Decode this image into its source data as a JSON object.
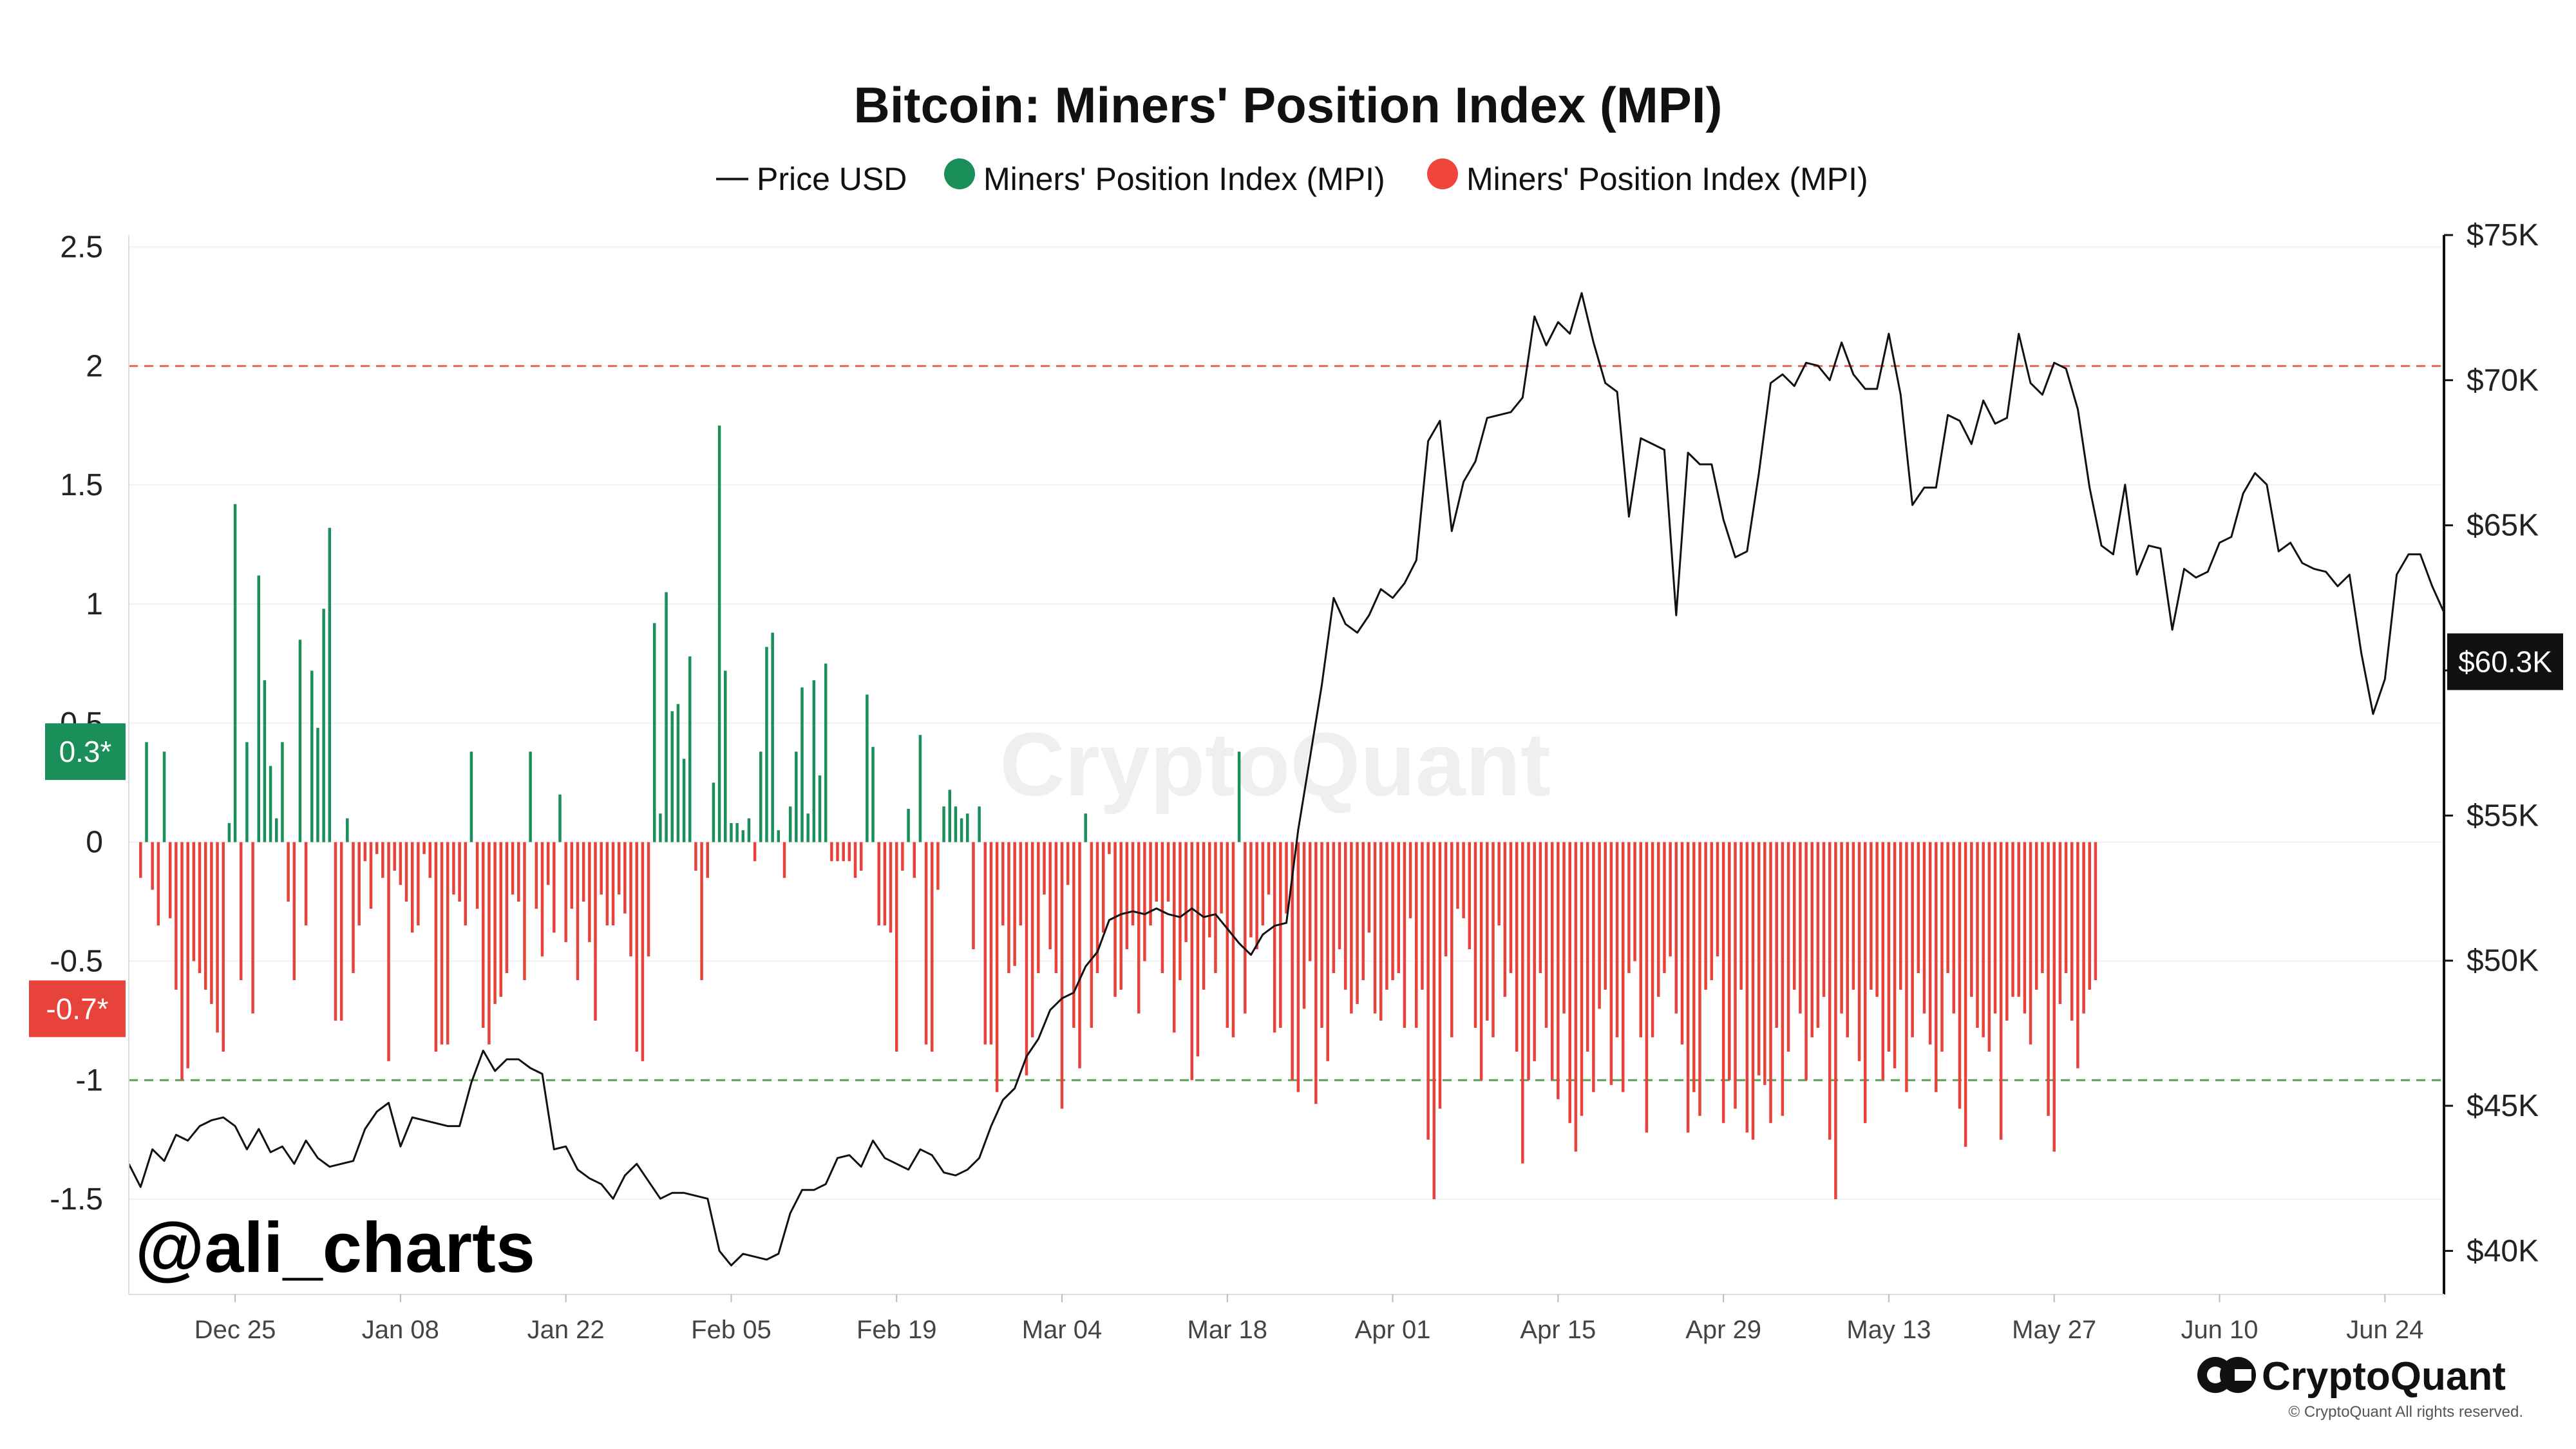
{
  "chart_data": {
    "type": "bar",
    "title": "Bitcoin: Miners' Position Index (MPI)",
    "legend": [
      {
        "label": "Price USD",
        "marker": "line",
        "color": "#222222"
      },
      {
        "label": "Miners' Position Index (MPI)",
        "marker": "dot",
        "color": "#1a8f5a"
      },
      {
        "label": "Miners' Position Index (MPI)",
        "marker": "dot",
        "color": "#f0453a"
      }
    ],
    "colors": {
      "positive": "#1a8f5a",
      "negative": "#e8433a",
      "price": "#111111",
      "upper_line": "#e06a5f",
      "lower_line": "#5aa05a"
    },
    "left_axis": {
      "ticks": [
        "2.5",
        "2",
        "1.5",
        "1",
        "0.5",
        "0",
        "-0.5",
        "-1",
        "-1.5"
      ],
      "ylim": [
        -1.9,
        2.55
      ]
    },
    "right_axis": {
      "ticks": [
        "$75K",
        "$70K",
        "$65K",
        "$60K",
        "$55K",
        "$50K",
        "$45K",
        "$40K"
      ],
      "ylim": [
        38500,
        75000
      ]
    },
    "x_ticks": [
      "Dec 25",
      "Jan 08",
      "Jan 22",
      "Feb 05",
      "Feb 19",
      "Mar 04",
      "Mar 18",
      "Apr 01",
      "Apr 15",
      "Apr 29",
      "May 13",
      "May 27",
      "Jun 10",
      "Jun 24"
    ],
    "x_range_days": [
      -9,
      187
    ],
    "thresholds": [
      {
        "value": 2,
        "color": "#e06a5f"
      },
      {
        "value": -1,
        "color": "#5aa05a"
      }
    ],
    "badges": [
      {
        "label": "0.3*",
        "value": 0.38,
        "axis": "left",
        "color": "#1a8f5a"
      },
      {
        "label": "-0.7*",
        "value": -0.7,
        "axis": "left",
        "color": "#e8433a"
      },
      {
        "label": "$60.3K",
        "value": 60300,
        "axis": "right",
        "color": "#111111"
      }
    ],
    "mpi_series": {
      "name": "Miners' Position Index (MPI)",
      "day_start": -8,
      "values": [
        -0.15,
        0.42,
        -0.2,
        -0.35,
        0.38,
        -0.32,
        -0.62,
        -1.0,
        -0.95,
        -0.5,
        -0.55,
        -0.62,
        -0.68,
        -0.8,
        -0.88,
        0.08,
        1.42,
        -0.58,
        0.42,
        -0.72,
        1.12,
        0.68,
        0.32,
        0.1,
        0.42,
        -0.25,
        -0.58,
        0.85,
        -0.35,
        0.72,
        0.48,
        0.98,
        1.32,
        -0.75,
        -0.75,
        0.1,
        -0.55,
        -0.35,
        -0.08,
        -0.28,
        -0.05,
        -0.15,
        -0.92,
        -0.12,
        -0.18,
        -0.25,
        -0.38,
        -0.35,
        -0.05,
        -0.15,
        -0.88,
        -0.85,
        -0.85,
        -0.22,
        -0.25,
        -0.35,
        0.38,
        -0.28,
        -0.78,
        -0.85,
        -0.68,
        -0.65,
        -0.55,
        -0.22,
        -0.25,
        -0.58,
        0.38,
        -0.28,
        -0.48,
        -0.18,
        -0.38,
        0.2,
        -0.42,
        -0.28,
        -0.58,
        -0.25,
        -0.42,
        -0.75,
        -0.22,
        -0.35,
        -0.35,
        -0.22,
        -0.3,
        -0.48,
        -0.88,
        -0.92,
        -0.48,
        0.92,
        0.12,
        1.05,
        0.55,
        0.58,
        0.35,
        0.78,
        -0.12,
        -0.58,
        -0.15,
        0.25,
        1.75,
        0.72,
        0.08,
        0.08,
        0.05,
        0.1,
        -0.08,
        0.38,
        0.82,
        0.88,
        0.05,
        -0.15,
        0.15,
        0.38,
        0.65,
        0.12,
        0.68,
        0.28,
        0.75,
        -0.08,
        -0.08,
        -0.08,
        -0.08,
        -0.15,
        -0.12,
        0.62,
        0.4,
        -0.35,
        -0.35,
        -0.38,
        -0.88,
        -0.12,
        0.14,
        -0.15,
        0.45,
        -0.85,
        -0.88,
        -0.2,
        0.15,
        0.22,
        0.15,
        0.1,
        0.12,
        -0.45,
        0.15,
        -0.85,
        -0.85,
        -1.05,
        -0.35,
        -0.55,
        -0.52,
        -0.35,
        -0.98,
        -0.82,
        -0.55,
        -0.22,
        -0.45,
        -0.55,
        -1.12,
        -0.18,
        -0.78,
        -0.95,
        0.12,
        -0.78,
        -0.55,
        -0.38,
        -0.05,
        -0.65,
        -0.62,
        -0.45,
        -0.35,
        -0.72,
        -0.5,
        -0.35,
        -0.25,
        -0.55,
        -0.25,
        -0.8,
        -0.58,
        -0.42,
        -1.0,
        -0.9,
        -0.62,
        -0.4,
        -0.55,
        -0.3,
        -0.78,
        -0.82,
        0.38,
        -0.72,
        -0.4,
        -0.45,
        -0.35,
        -0.22,
        -0.8,
        -0.78,
        -0.3,
        -1.0,
        -1.05,
        -0.7,
        -0.5,
        -1.1,
        -0.78,
        -0.92,
        -0.55,
        -0.45,
        -0.62,
        -0.72,
        -0.68,
        -0.58,
        -0.38,
        -0.72,
        -0.75,
        -0.62,
        -0.58,
        -0.55,
        -0.78,
        -0.32,
        -0.78,
        -0.62,
        -1.25,
        -1.5,
        -1.12,
        -0.48,
        -0.82,
        -0.28,
        -0.32,
        -0.45,
        -0.78,
        -1.0,
        -0.75,
        -0.82,
        -0.35,
        -0.65,
        -0.55,
        -0.88,
        -1.35,
        -1.0,
        -0.92,
        -0.55,
        -0.78,
        -1.0,
        -1.08,
        -0.72,
        -1.18,
        -1.3,
        -1.15,
        -0.88,
        -1.05,
        -0.7,
        -0.62,
        -1.02,
        -0.82,
        -1.05,
        -0.55,
        -0.5,
        -0.82,
        -1.22,
        -0.82,
        -0.65,
        -0.55,
        -0.48,
        -0.72,
        -0.85,
        -1.22,
        -1.05,
        -1.15,
        -0.62,
        -0.58,
        -0.48,
        -1.18,
        -1.0,
        -1.12,
        -0.62,
        -1.22,
        -1.25,
        -0.98,
        -1.02,
        -1.18,
        -0.78,
        -1.15,
        -0.88,
        -0.62,
        -0.72,
        -1.0,
        -0.82,
        -0.78,
        -0.65,
        -1.25,
        -1.5,
        -0.72,
        -0.82,
        -0.62,
        -0.92,
        -1.18,
        -0.62,
        -0.65,
        -1.0,
        -0.88,
        -0.95,
        -0.62,
        -1.05,
        -0.82,
        -0.55,
        -0.72,
        -0.85,
        -1.05,
        -0.88,
        -0.55,
        -0.72,
        -1.12,
        -1.28,
        -0.65,
        -0.78,
        -0.82,
        -0.88,
        -0.72,
        -1.25,
        -0.75,
        -0.65,
        -0.65,
        -0.72,
        -0.85,
        -0.62,
        -0.55,
        -1.15,
        -1.3,
        -0.68,
        -0.55,
        -0.75,
        -0.95,
        -0.72,
        -0.62,
        -0.58
      ]
    },
    "price_series": {
      "name": "Price USD",
      "points": [
        [
          -9,
          43000
        ],
        [
          -8,
          42200
        ],
        [
          -7,
          43500
        ],
        [
          -6,
          43100
        ],
        [
          -5,
          44000
        ],
        [
          -4,
          43800
        ],
        [
          -3,
          44300
        ],
        [
          -2,
          44500
        ],
        [
          -1,
          44600
        ],
        [
          0,
          44300
        ],
        [
          1,
          43500
        ],
        [
          2,
          44200
        ],
        [
          3,
          43400
        ],
        [
          4,
          43600
        ],
        [
          5,
          43000
        ],
        [
          6,
          43800
        ],
        [
          7,
          43200
        ],
        [
          8,
          42900
        ],
        [
          9,
          43000
        ],
        [
          10,
          43100
        ],
        [
          11,
          44200
        ],
        [
          12,
          44800
        ],
        [
          13,
          45100
        ],
        [
          14,
          43600
        ],
        [
          15,
          44600
        ],
        [
          16,
          44500
        ],
        [
          17,
          44400
        ],
        [
          18,
          44300
        ],
        [
          19,
          44300
        ],
        [
          20,
          45800
        ],
        [
          21,
          46900
        ],
        [
          22,
          46200
        ],
        [
          23,
          46600
        ],
        [
          24,
          46600
        ],
        [
          25,
          46300
        ],
        [
          26,
          46100
        ],
        [
          27,
          43500
        ],
        [
          28,
          43600
        ],
        [
          29,
          42800
        ],
        [
          30,
          42500
        ],
        [
          31,
          42300
        ],
        [
          32,
          41800
        ],
        [
          33,
          42600
        ],
        [
          34,
          43000
        ],
        [
          35,
          42400
        ],
        [
          36,
          41800
        ],
        [
          37,
          42000
        ],
        [
          38,
          42000
        ],
        [
          39,
          41900
        ],
        [
          40,
          41800
        ],
        [
          41,
          40000
        ],
        [
          42,
          39500
        ],
        [
          43,
          39900
        ],
        [
          44,
          39800
        ],
        [
          45,
          39700
        ],
        [
          46,
          39900
        ],
        [
          47,
          41300
        ],
        [
          48,
          42100
        ],
        [
          49,
          42100
        ],
        [
          50,
          42300
        ],
        [
          51,
          43200
        ],
        [
          52,
          43300
        ],
        [
          53,
          42900
        ],
        [
          54,
          43800
        ],
        [
          55,
          43200
        ],
        [
          56,
          43000
        ],
        [
          57,
          42800
        ],
        [
          58,
          43500
        ],
        [
          59,
          43300
        ],
        [
          60,
          42700
        ],
        [
          61,
          42600
        ],
        [
          62,
          42800
        ],
        [
          63,
          43200
        ],
        [
          64,
          44300
        ],
        [
          65,
          45200
        ],
        [
          66,
          45600
        ],
        [
          67,
          46700
        ],
        [
          68,
          47300
        ],
        [
          69,
          48300
        ],
        [
          70,
          48700
        ],
        [
          71,
          48900
        ],
        [
          72,
          49800
        ],
        [
          73,
          50300
        ],
        [
          74,
          51400
        ],
        [
          75,
          51600
        ],
        [
          76,
          51700
        ],
        [
          77,
          51600
        ],
        [
          78,
          51800
        ],
        [
          79,
          51600
        ],
        [
          80,
          51500
        ],
        [
          81,
          51800
        ],
        [
          82,
          51500
        ],
        [
          83,
          51600
        ],
        [
          84,
          51100
        ],
        [
          85,
          50600
        ],
        [
          86,
          50200
        ],
        [
          87,
          50900
        ],
        [
          88,
          51200
        ],
        [
          89,
          51300
        ],
        [
          90,
          54500
        ],
        [
          91,
          57000
        ],
        [
          92,
          59500
        ],
        [
          93,
          62500
        ],
        [
          94,
          61600
        ],
        [
          95,
          61300
        ],
        [
          96,
          61900
        ],
        [
          97,
          62800
        ],
        [
          98,
          62500
        ],
        [
          99,
          63000
        ],
        [
          100,
          63800
        ],
        [
          101,
          67900
        ],
        [
          102,
          68600
        ],
        [
          103,
          64800
        ],
        [
          104,
          66500
        ],
        [
          105,
          67200
        ],
        [
          106,
          68700
        ],
        [
          107,
          68800
        ],
        [
          108,
          68900
        ],
        [
          109,
          69400
        ],
        [
          110,
          72200
        ],
        [
          111,
          71200
        ],
        [
          112,
          72000
        ],
        [
          113,
          71600
        ],
        [
          114,
          73000
        ],
        [
          115,
          71300
        ],
        [
          116,
          69900
        ],
        [
          117,
          69600
        ],
        [
          118,
          65300
        ],
        [
          119,
          68000
        ],
        [
          120,
          67800
        ],
        [
          121,
          67600
        ],
        [
          122,
          61900
        ],
        [
          123,
          67500
        ],
        [
          124,
          67100
        ],
        [
          125,
          67100
        ],
        [
          126,
          65200
        ],
        [
          127,
          63900
        ],
        [
          128,
          64100
        ],
        [
          129,
          66800
        ],
        [
          130,
          69900
        ],
        [
          131,
          70200
        ],
        [
          132,
          69800
        ],
        [
          133,
          70600
        ],
        [
          134,
          70500
        ],
        [
          135,
          70000
        ],
        [
          136,
          71300
        ],
        [
          137,
          70200
        ],
        [
          138,
          69700
        ],
        [
          139,
          69700
        ],
        [
          140,
          71600
        ],
        [
          141,
          69500
        ],
        [
          142,
          65700
        ],
        [
          143,
          66300
        ],
        [
          144,
          66300
        ],
        [
          145,
          68800
        ],
        [
          146,
          68600
        ],
        [
          147,
          67800
        ],
        [
          148,
          69300
        ],
        [
          149,
          68500
        ],
        [
          150,
          68700
        ],
        [
          151,
          71600
        ],
        [
          152,
          69900
        ],
        [
          153,
          69500
        ],
        [
          154,
          70600
        ],
        [
          155,
          70400
        ],
        [
          156,
          69000
        ],
        [
          157,
          66300
        ],
        [
          158,
          64300
        ],
        [
          159,
          64000
        ],
        [
          160,
          66400
        ],
        [
          161,
          63300
        ],
        [
          162,
          64300
        ],
        [
          163,
          64200
        ],
        [
          164,
          61400
        ],
        [
          165,
          63500
        ],
        [
          166,
          63200
        ],
        [
          167,
          63400
        ],
        [
          168,
          64400
        ],
        [
          169,
          64600
        ],
        [
          170,
          66100
        ],
        [
          171,
          66800
        ],
        [
          172,
          66400
        ],
        [
          173,
          64100
        ],
        [
          174,
          64400
        ],
        [
          175,
          63700
        ],
        [
          176,
          63500
        ],
        [
          177,
          63400
        ],
        [
          178,
          62900
        ],
        [
          179,
          63300
        ],
        [
          180,
          60600
        ],
        [
          181,
          58500
        ],
        [
          182,
          59700
        ],
        [
          183,
          63300
        ],
        [
          184,
          64000
        ],
        [
          185,
          64000
        ],
        [
          186,
          62900
        ],
        [
          187,
          62000
        ]
      ]
    },
    "watermark": "CryptoQuant",
    "handle": "@ali_charts",
    "brand": "CryptoQuant",
    "copyright": "© CryptoQuant All rights reserved."
  }
}
